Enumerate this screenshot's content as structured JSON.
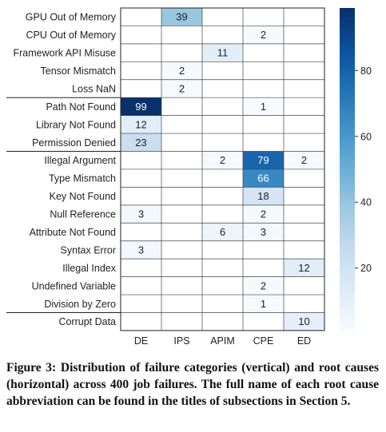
{
  "chart_data": {
    "type": "heatmap",
    "rows": [
      "GPU Out of Memory",
      "CPU Out of Memory",
      "Framework API Misuse",
      "Tensor Mismatch",
      "Loss NaN",
      "Path Not Found",
      "Library Not Found",
      "Permission Denied",
      "Illegal Argument",
      "Type Mismatch",
      "Key Not Found",
      "Null Reference",
      "Attribute Not Found",
      "Syntax Error",
      "Illegal Index",
      "Undefined Variable",
      "Division by Zero",
      "Corrupt Data"
    ],
    "columns": [
      "DE",
      "IPS",
      "APIM",
      "CPE",
      "ED"
    ],
    "values": [
      [
        null,
        39,
        null,
        null,
        null
      ],
      [
        null,
        null,
        null,
        2,
        null
      ],
      [
        null,
        null,
        11,
        null,
        null
      ],
      [
        null,
        2,
        null,
        null,
        null
      ],
      [
        null,
        2,
        null,
        null,
        null
      ],
      [
        99,
        null,
        null,
        1,
        null
      ],
      [
        12,
        null,
        null,
        null,
        null
      ],
      [
        23,
        null,
        null,
        null,
        null
      ],
      [
        null,
        null,
        2,
        79,
        2
      ],
      [
        null,
        null,
        null,
        66,
        null
      ],
      [
        null,
        null,
        null,
        18,
        null
      ],
      [
        3,
        null,
        null,
        2,
        null
      ],
      [
        null,
        null,
        6,
        3,
        null
      ],
      [
        3,
        null,
        null,
        null,
        null
      ],
      [
        null,
        null,
        null,
        null,
        12
      ],
      [
        null,
        null,
        null,
        2,
        null
      ],
      [
        null,
        null,
        null,
        1,
        null
      ],
      [
        null,
        null,
        null,
        null,
        10
      ]
    ],
    "group_boundaries_after_row": [
      4,
      7,
      16
    ],
    "colorbar": {
      "min": 1,
      "max": 99,
      "ticks": [
        20,
        40,
        60,
        80
      ],
      "colormap": "Blues"
    },
    "grid": true
  },
  "caption": "Figure 3: Distribution of failure categories (vertical) and root causes (horizontal) across 400 job failures. The full name of each root cause abbreviation can be found in the titles of subsections in Section 5."
}
